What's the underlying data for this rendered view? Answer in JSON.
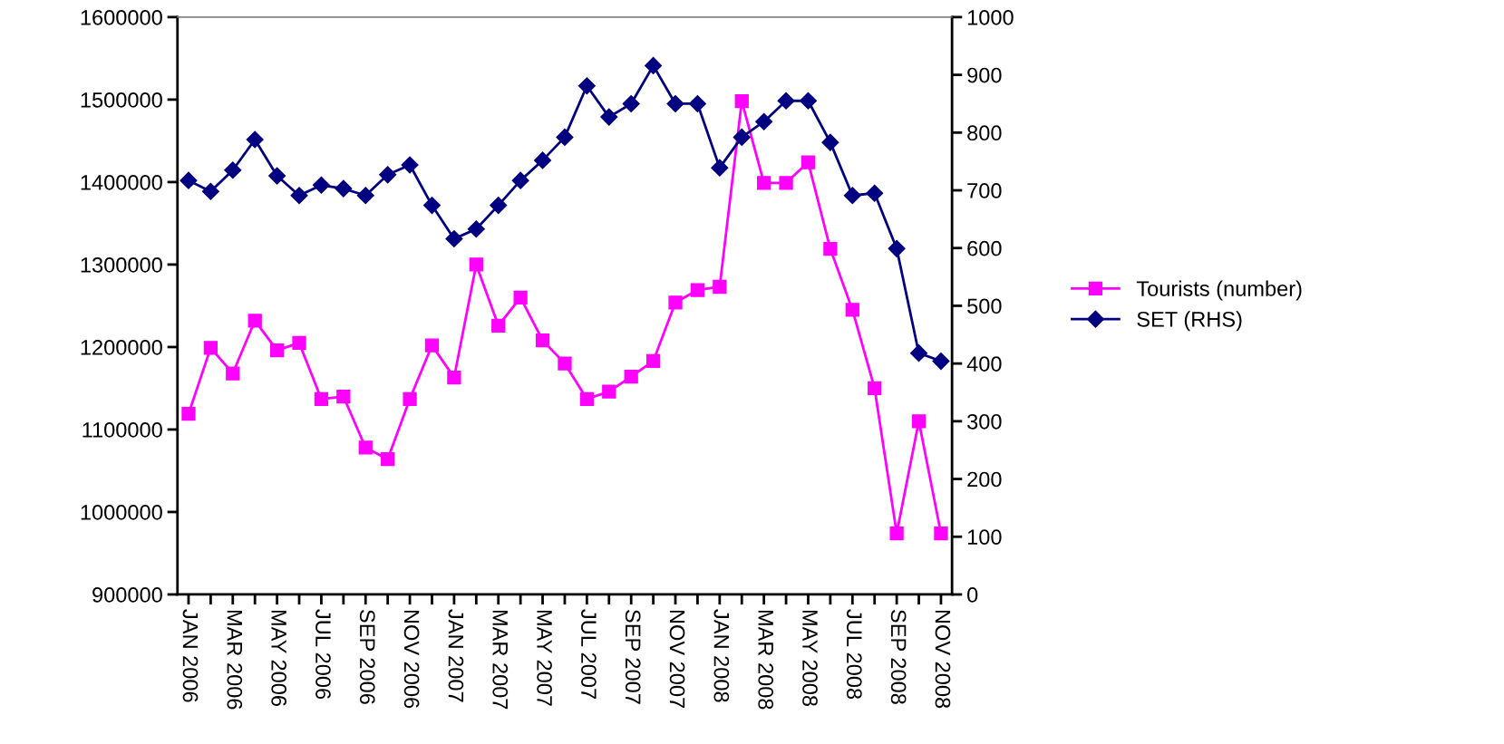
{
  "chart_data": {
    "type": "line",
    "categories": [
      "JAN 2006",
      null,
      "MAR 2006",
      null,
      "MAY 2006",
      null,
      "JUL 2006",
      null,
      "SEP 2006",
      null,
      "NOV 2006",
      null,
      "JAN 2007",
      null,
      "MAR 2007",
      null,
      "MAY 2007",
      null,
      "JUL 2007",
      null,
      "SEP 2007",
      null,
      "NOV 2007",
      null,
      "JAN 2008",
      null,
      "MAR 2008",
      null,
      "MAY 2008",
      null,
      "JUL 2008",
      null,
      "SEP 2008",
      null,
      "NOV 2008"
    ],
    "series": [
      {
        "name": "Tourists (number)",
        "color": "#ff00ff",
        "marker": "square",
        "values": [
          1119000,
          1199000,
          1168000,
          1232000,
          1196000,
          1205000,
          1137000,
          1140000,
          1078000,
          1064000,
          1137000,
          1202000,
          1163000,
          1300000,
          1226000,
          1260000,
          1208000,
          1180000,
          1137000,
          1146000,
          1164000,
          1183000,
          1254000,
          1269000,
          1273000,
          1498000,
          1399000,
          1399000,
          1424000,
          1319000,
          1245000,
          1150000,
          974000,
          1110000,
          974000
        ]
      },
      {
        "name": "SET (RHS)",
        "color": "#000080",
        "marker": "diamond",
        "axis": "y2",
        "values": [
          717,
          698,
          735,
          788,
          725,
          691,
          709,
          703,
          691,
          727,
          744,
          674,
          616,
          633,
          674,
          717,
          752,
          792,
          881,
          827,
          850,
          916,
          850,
          850,
          739,
          792,
          819,
          855,
          855,
          783,
          691,
          695,
          599,
          418,
          404
        ]
      }
    ],
    "ylim": [
      900000,
      1600000
    ],
    "yticks": [
      900000,
      1000000,
      1100000,
      1200000,
      1300000,
      1400000,
      1500000,
      1600000
    ],
    "y2lim": [
      0,
      1000
    ],
    "y2ticks": [
      0,
      100,
      200,
      300,
      400,
      500,
      600,
      700,
      800,
      900,
      1000
    ],
    "grid": false,
    "legend": "right"
  }
}
